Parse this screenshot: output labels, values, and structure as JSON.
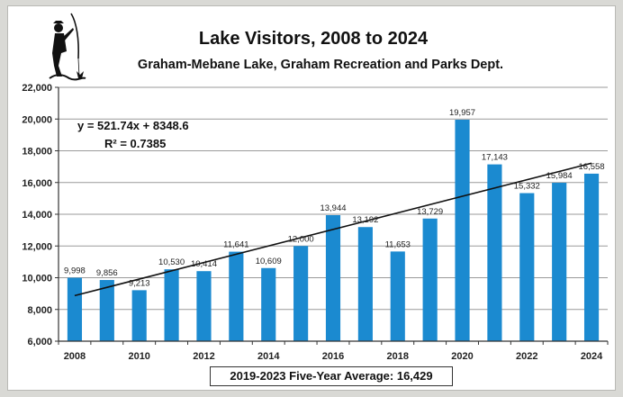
{
  "chart_data": {
    "type": "bar",
    "title": "Lake Visitors, 2008 to 2024",
    "subtitle": "Graham-Mebane Lake, Graham Recreation and Parks Dept.",
    "xlabel": "",
    "ylabel": "",
    "categories": [
      "2008",
      "2009",
      "2010",
      "2011",
      "2012",
      "2013",
      "2014",
      "2015",
      "2016",
      "2017",
      "2018",
      "2019",
      "2020",
      "2021",
      "2022",
      "2023",
      "2024"
    ],
    "values": [
      9998,
      9856,
      9213,
      10530,
      10414,
      11641,
      10609,
      12000,
      13944,
      13192,
      11653,
      13729,
      19957,
      17143,
      15332,
      15984,
      16558
    ],
    "value_labels": [
      "9,998",
      "9,856",
      "9,213",
      "10,530",
      "10,414",
      "11,641",
      "10,609",
      "12,000",
      "13,944",
      "13,192",
      "11,653",
      "13,729",
      "19,957",
      "17,143",
      "15,332",
      "15,984",
      "16,558"
    ],
    "x_tick_labels": [
      "2008",
      "2010",
      "2012",
      "2014",
      "2016",
      "2018",
      "2020",
      "2022",
      "2024"
    ],
    "y_tick_labels": [
      "6,000",
      "8,000",
      "10,000",
      "12,000",
      "14,000",
      "16,000",
      "18,000",
      "20,000",
      "22,000"
    ],
    "ylim": [
      6000,
      22000
    ],
    "grid": true,
    "legend": "none",
    "bar_color": "#1b8ad0",
    "trendline": {
      "slope": 521.74,
      "intercept": 8348.6,
      "r_squared": 0.7385,
      "equation_label": "y = 521.74x + 8348.6",
      "r2_label": "R² = 0.7385"
    },
    "annotation": "2019-2023 Five-Year Average: 16,429",
    "logo_icon": "fisherman-icon"
  }
}
